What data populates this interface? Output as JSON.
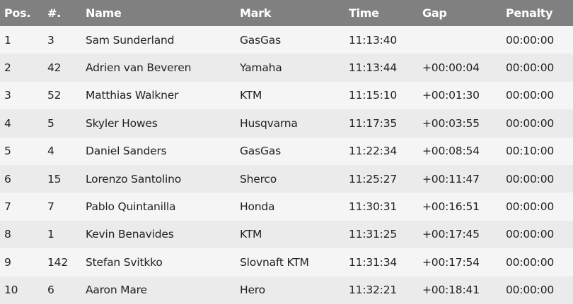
{
  "header": {
    "pos": "Pos.",
    "num": "#.",
    "name": "Name",
    "mark": "Mark",
    "time": "Time",
    "gap": "Gap",
    "penalty": "Penalty"
  },
  "colors": {
    "header_bg": "#808080",
    "row_odd": "#f5f5f5",
    "row_even": "#ebebeb"
  },
  "rows": [
    {
      "pos": "1",
      "num": "3",
      "name": "Sam Sunderland",
      "mark": "GasGas",
      "time": "11:13:40",
      "gap": "",
      "penalty": "00:00:00"
    },
    {
      "pos": "2",
      "num": "42",
      "name": "Adrien van Beveren",
      "mark": "Yamaha",
      "time": "11:13:44",
      "gap": "+00:00:04",
      "penalty": "00:00:00"
    },
    {
      "pos": "3",
      "num": "52",
      "name": "Matthias Walkner",
      "mark": "KTM",
      "time": "11:15:10",
      "gap": "+00:01:30",
      "penalty": "00:00:00"
    },
    {
      "pos": "4",
      "num": "5",
      "name": "Skyler Howes",
      "mark": "Husqvarna",
      "time": "11:17:35",
      "gap": "+00:03:55",
      "penalty": "00:00:00"
    },
    {
      "pos": "5",
      "num": "4",
      "name": "Daniel Sanders",
      "mark": "GasGas",
      "time": "11:22:34",
      "gap": "+00:08:54",
      "penalty": "00:10:00"
    },
    {
      "pos": "6",
      "num": "15",
      "name": "Lorenzo Santolino",
      "mark": "Sherco",
      "time": "11:25:27",
      "gap": "+00:11:47",
      "penalty": "00:00:00"
    },
    {
      "pos": "7",
      "num": "7",
      "name": "Pablo Quintanilla",
      "mark": "Honda",
      "time": "11:30:31",
      "gap": "+00:16:51",
      "penalty": "00:00:00"
    },
    {
      "pos": "8",
      "num": "1",
      "name": "Kevin Benavides",
      "mark": "KTM",
      "time": "11:31:25",
      "gap": "+00:17:45",
      "penalty": "00:00:00"
    },
    {
      "pos": "9",
      "num": "142",
      "name": "Stefan Svitkko",
      "mark": "Slovnaft KTM",
      "time": "11:31:34",
      "gap": "+00:17:54",
      "penalty": "00:00:00"
    },
    {
      "pos": "10",
      "num": "6",
      "name": "Aaron Mare",
      "mark": "Hero",
      "time": "11:32:21",
      "gap": "+00:18:41",
      "penalty": "00:00:00"
    }
  ]
}
